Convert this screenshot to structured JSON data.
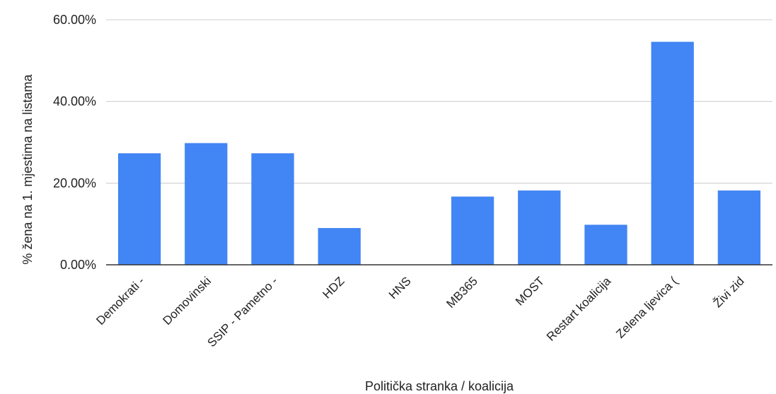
{
  "chart_data": {
    "type": "bar",
    "title": "",
    "xlabel": "Politička stranka / koalicija",
    "ylabel": "% žena na 1. mjestima na listama",
    "categories": [
      "Demokrati -",
      "Domovinski",
      "SSIP - Pametno -",
      "HDZ",
      "HNS",
      "MB365",
      "MOST",
      "Restart koalicija",
      "Zelena ljevica (",
      "Živi zid"
    ],
    "series": [
      {
        "values": [
          27.3,
          29.8,
          27.3,
          9.0,
          0.0,
          16.7,
          18.2,
          9.8,
          54.6,
          18.2
        ]
      }
    ],
    "yticks": [
      "0.00%",
      "20.00%",
      "40.00%",
      "60.00%"
    ],
    "ylim": [
      0,
      60
    ],
    "grid": true,
    "legend": "none",
    "colors": {
      "bar": "#4285f4",
      "grid": "#cccccc",
      "axis": "#333333"
    }
  }
}
